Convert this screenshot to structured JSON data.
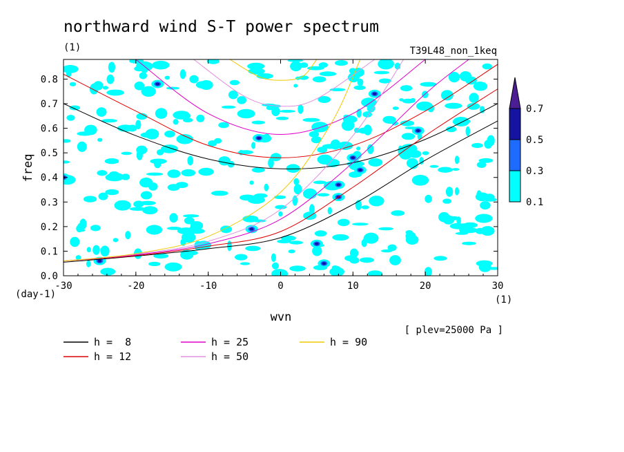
{
  "chart_data": {
    "type": "heatmap",
    "title": "northward wind S-T power spectrum",
    "subtitle_left": "(1)",
    "subtitle_right": "T39L48_non_1keq",
    "xlabel": "wvn",
    "ylabel": "freq",
    "x_unit": "(1)",
    "y_unit": "(day-1)",
    "xlim": [
      -30,
      30
    ],
    "ylim": [
      0,
      0.88
    ],
    "x_ticks": [
      -30,
      -20,
      -10,
      0,
      10,
      20,
      30
    ],
    "x_tick_labels": [
      "-30",
      "-20",
      "-10",
      "0",
      "10",
      "20",
      "30"
    ],
    "y_ticks": [
      0,
      0.1,
      0.2,
      0.3,
      0.4,
      0.5,
      0.6,
      0.7,
      0.8
    ],
    "y_tick_labels": [
      "0.0",
      "0.1",
      "0.2",
      "0.3",
      "0.4",
      "0.5",
      "0.6",
      "0.7",
      "0.8"
    ],
    "note": "[ plev=25000 Pa ]",
    "colorbar": {
      "levels": [
        "0.1",
        "0.3",
        "0.5",
        "0.7"
      ],
      "colors": [
        "#00ffff",
        "#1e6cff",
        "#1414a0",
        "#4b1e96"
      ]
    },
    "contours": [
      {
        "level": 0.1,
        "color": "#00ffff"
      },
      {
        "level": 0.3,
        "color": "#1e6cff"
      },
      {
        "level": 0.5,
        "color": "#1414a0"
      },
      {
        "level": 0.7,
        "color": "#4b1e96"
      }
    ],
    "series": [
      {
        "name": "h =  8",
        "h": 8,
        "color": "#000000"
      },
      {
        "name": "h = 12",
        "h": 12,
        "color": "#e00000"
      },
      {
        "name": "h = 25",
        "h": 25,
        "color": "#e000c8"
      },
      {
        "name": "h = 50",
        "h": 50,
        "color": "#e090e0"
      },
      {
        "name": "h = 90",
        "h": 90,
        "color": "#f0c800"
      }
    ],
    "curve_points": {
      "8": {
        "westward_n1": [
          [
            -30,
            0.7
          ],
          [
            -20,
            0.57
          ],
          [
            -10,
            0.475
          ],
          [
            0,
            0.435
          ],
          [
            10,
            0.46
          ],
          [
            20,
            0.555
          ],
          [
            30,
            0.7
          ]
        ],
        "kelvin": [
          [
            -30,
            0.055
          ],
          [
            -20,
            0.08
          ],
          [
            -10,
            0.11
          ],
          [
            0,
            0.155
          ],
          [
            10,
            0.29
          ],
          [
            20,
            0.47
          ],
          [
            30,
            0.63
          ]
        ]
      },
      "12": {
        "westward_n1": [
          [
            -30,
            0.82
          ],
          [
            -20,
            0.67
          ],
          [
            -10,
            0.53
          ],
          [
            0,
            0.48
          ],
          [
            10,
            0.53
          ],
          [
            20,
            0.67
          ],
          [
            30,
            0.86
          ]
        ],
        "kelvin": [
          [
            -30,
            0.06
          ],
          [
            -20,
            0.082
          ],
          [
            -10,
            0.12
          ],
          [
            0,
            0.18
          ],
          [
            10,
            0.36
          ],
          [
            20,
            0.57
          ],
          [
            30,
            0.76
          ]
        ]
      },
      "25": {
        "westward_n1": [
          [
            -20,
            0.88
          ],
          [
            -10,
            0.66
          ],
          [
            0,
            0.575
          ],
          [
            10,
            0.66
          ],
          [
            20,
            0.88
          ]
        ],
        "kelvin": [
          [
            -30,
            0.06
          ],
          [
            -20,
            0.085
          ],
          [
            -10,
            0.13
          ],
          [
            0,
            0.23
          ],
          [
            10,
            0.46
          ],
          [
            20,
            0.74
          ],
          [
            26,
            0.88
          ]
        ]
      },
      "50": {
        "westward_n1": [
          [
            -12,
            0.88
          ],
          [
            -5,
            0.73
          ],
          [
            0,
            0.69
          ],
          [
            5,
            0.72
          ],
          [
            13,
            0.88
          ]
        ],
        "kelvin": [
          [
            -30,
            0.06
          ],
          [
            -20,
            0.088
          ],
          [
            -10,
            0.14
          ],
          [
            0,
            0.27
          ],
          [
            10,
            0.57
          ],
          [
            17,
            0.88
          ]
        ]
      },
      "90": {
        "westward_n1": [
          [
            -7,
            0.88
          ],
          [
            -3,
            0.81
          ],
          [
            0,
            0.795
          ],
          [
            3,
            0.81
          ],
          [
            5,
            0.88
          ]
        ],
        "kelvin": [
          [
            -30,
            0.06
          ],
          [
            -20,
            0.09
          ],
          [
            -10,
            0.16
          ],
          [
            0,
            0.34
          ],
          [
            7,
            0.62
          ],
          [
            11,
            0.88
          ]
        ]
      }
    },
    "grid": false
  }
}
